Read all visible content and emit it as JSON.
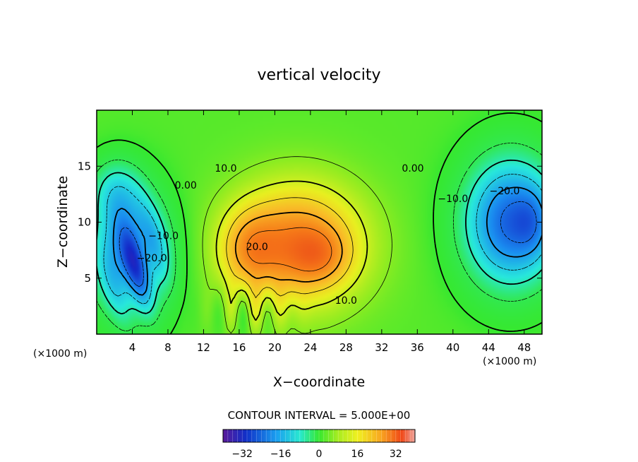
{
  "chart_data": {
    "type": "heatmap",
    "title": "vertical velocity",
    "xlabel": "X−coordinate",
    "ylabel": "Z−coordinate",
    "x_unit_left": "(×1000 m)",
    "x_unit_right": "(×1000 m)",
    "xlim": [
      0,
      50
    ],
    "ylim": [
      0,
      20
    ],
    "x_ticks": [
      4,
      8,
      12,
      16,
      20,
      24,
      28,
      32,
      36,
      40,
      44,
      48
    ],
    "y_ticks": [
      5,
      10,
      15
    ],
    "contour_interval_text": "CONTOUR INTERVAL = 5.000E+00",
    "contour_interval": 5,
    "colorbar": {
      "vmin": -40,
      "vmax": 40,
      "ticks": [
        -32,
        -16,
        0,
        16,
        32
      ],
      "tick_labels": [
        "−32",
        "−16",
        "0",
        "16",
        "32"
      ]
    },
    "field_features": [
      {
        "kind": "updraft",
        "x": 22.5,
        "z": 7.5,
        "peak": 27
      },
      {
        "kind": "updraft",
        "x": 17.5,
        "z": 7.5,
        "peak": 28
      },
      {
        "kind": "downdraft",
        "x": 4,
        "z": 7,
        "peak": -30
      },
      {
        "kind": "downdraft",
        "x": 46,
        "z": 10,
        "peak": -28
      }
    ],
    "contour_labels": [
      {
        "text": "0.00",
        "x": 10,
        "z": 13
      },
      {
        "text": "10.0",
        "x": 14.5,
        "z": 14.5
      },
      {
        "text": "20.0",
        "x": 18,
        "z": 7.5
      },
      {
        "text": "10.0",
        "x": 28,
        "z": 2.7
      },
      {
        "text": "0.00",
        "x": 35.5,
        "z": 14.5
      },
      {
        "text": "−10.0",
        "x": 40,
        "z": 11.8
      },
      {
        "text": "−20.0",
        "x": 45.8,
        "z": 12.5
      },
      {
        "text": "−10.0",
        "x": 7.5,
        "z": 8.5
      },
      {
        "text": "−20.0",
        "x": 6.2,
        "z": 6.5
      }
    ]
  }
}
